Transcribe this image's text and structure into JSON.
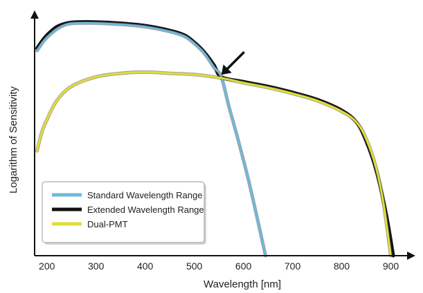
{
  "chart_data": {
    "type": "line",
    "xlabel": "Wavelength [nm]",
    "ylabel": "Logarithm of Sensitivity",
    "x_ticks": [
      200,
      300,
      400,
      500,
      600,
      700,
      800,
      900
    ],
    "xlim": [
      175,
      950
    ],
    "ylim": [
      0,
      100
    ],
    "y_ticks_shown": false,
    "grid": false,
    "legend_position": "bottom-left",
    "annotation": {
      "type": "arrow",
      "points_to": {
        "x": 555,
        "y": 75
      }
    },
    "series": [
      {
        "name": "Standard Wavelength Range",
        "color": "#6fb8dc",
        "x": [
          180,
          190,
          200,
          220,
          240,
          260,
          300,
          350,
          400,
          450,
          480,
          500,
          520,
          540,
          555,
          570,
          590,
          610,
          630,
          645
        ],
        "y": [
          86,
          89,
          91.5,
          95,
          97,
          97.5,
          97.5,
          97,
          96,
          94,
          92,
          89,
          85,
          79,
          75,
          63,
          48,
          32,
          14,
          0
        ]
      },
      {
        "name": "Extended Wavelength Range",
        "color": "#111111",
        "x": [
          180,
          190,
          200,
          220,
          240,
          260,
          300,
          350,
          400,
          450,
          480,
          500,
          520,
          540,
          555,
          600,
          650,
          700,
          750,
          800,
          830,
          850,
          870,
          890,
          905
        ],
        "y": [
          87,
          90,
          92.5,
          96,
          97.5,
          98,
          98,
          97.5,
          96.5,
          94.5,
          92.5,
          89.5,
          85.5,
          80,
          75,
          73,
          71,
          68.5,
          65.5,
          61,
          56,
          48,
          36,
          18,
          0
        ]
      },
      {
        "name": "Dual-PMT",
        "color": "#e2dd35",
        "x": [
          180,
          190,
          200,
          220,
          250,
          300,
          350,
          400,
          450,
          500,
          555,
          600,
          650,
          700,
          750,
          800,
          830,
          850,
          870,
          885,
          900
        ],
        "y": [
          44,
          52,
          57,
          65,
          71,
          75,
          76.5,
          77,
          76.5,
          76,
          74.5,
          72.5,
          70.5,
          68,
          65,
          60.5,
          56,
          49,
          37,
          22,
          0
        ]
      }
    ]
  }
}
